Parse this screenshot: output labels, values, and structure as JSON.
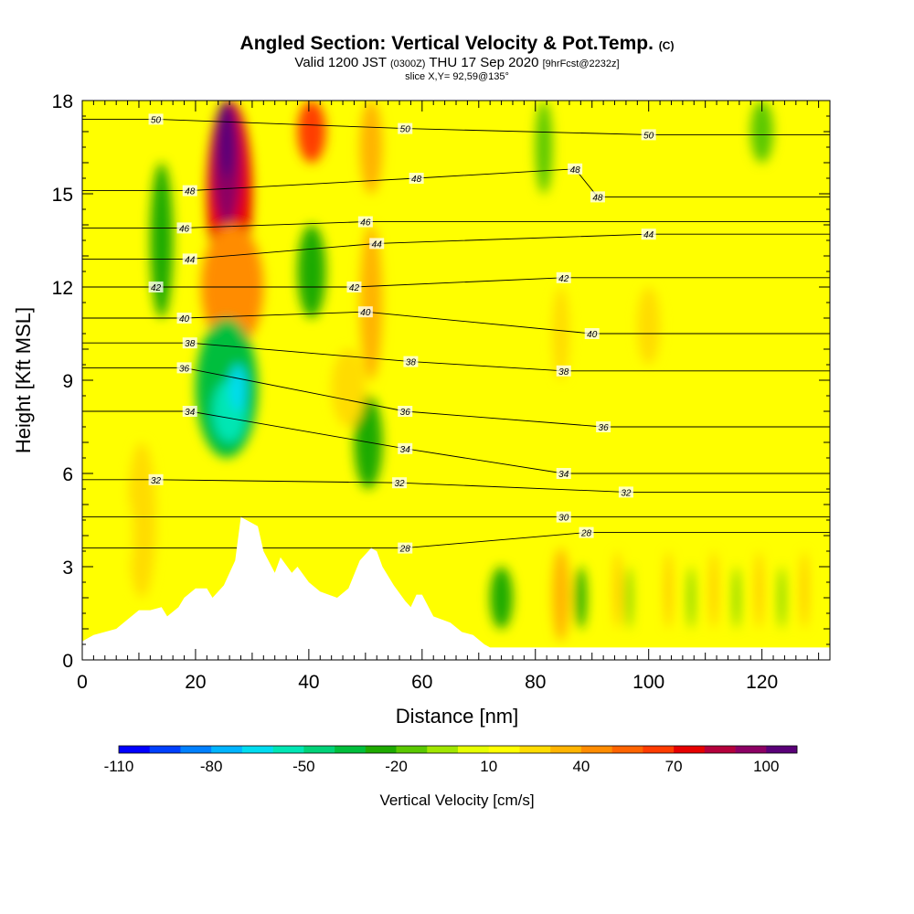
{
  "title": {
    "main": "Angled Section: Vertical Velocity & Pot.Temp.",
    "unit_tag": "(C)",
    "valid_prefix": "Valid 1200 JST",
    "valid_utc": "(0300Z)",
    "valid_date": "THU 17 Sep 2020",
    "forecast": "[9hrFcst@2232z]",
    "slice": "slice X,Y= 92,59@135°"
  },
  "chart_data": {
    "type": "heatmap",
    "xlabel": "Distance [nm]",
    "ylabel": "Height [Kft MSL]",
    "xlim": [
      0,
      132
    ],
    "ylim": [
      0,
      18
    ],
    "x_ticks": [
      0,
      20,
      40,
      60,
      80,
      100,
      120
    ],
    "y_ticks": [
      0,
      3,
      6,
      9,
      12,
      15,
      18
    ],
    "colorbar": {
      "label": "Vertical Velocity [cm/s]",
      "min": -110,
      "max": 110,
      "tick_labels": [
        "-110",
        "-80",
        "-50",
        "-20",
        "10",
        "40",
        "70",
        "100"
      ],
      "colors": [
        "#0000ff",
        "#0040ff",
        "#0080ff",
        "#00b4ff",
        "#00dcf0",
        "#00e6b4",
        "#00d278",
        "#00be3c",
        "#1eaa00",
        "#5ac800",
        "#a0e600",
        "#e6ff00",
        "#ffff00",
        "#ffdc00",
        "#ffb400",
        "#ff8c00",
        "#ff6400",
        "#ff3c00",
        "#e60000",
        "#b4003c",
        "#8c0064",
        "#5a0078"
      ]
    },
    "terrain": [
      [
        0,
        0.6
      ],
      [
        2,
        0.8
      ],
      [
        6,
        1.0
      ],
      [
        8,
        1.3
      ],
      [
        10,
        1.6
      ],
      [
        12,
        1.6
      ],
      [
        14,
        1.7
      ],
      [
        15,
        1.4
      ],
      [
        17,
        1.7
      ],
      [
        18,
        2.0
      ],
      [
        20,
        2.3
      ],
      [
        22,
        2.3
      ],
      [
        23,
        2.0
      ],
      [
        25,
        2.4
      ],
      [
        27,
        3.2
      ],
      [
        28,
        4.6
      ],
      [
        31,
        4.3
      ],
      [
        32,
        3.5
      ],
      [
        34,
        2.8
      ],
      [
        35,
        3.3
      ],
      [
        37,
        2.8
      ],
      [
        38,
        3.0
      ],
      [
        40,
        2.5
      ],
      [
        42,
        2.2
      ],
      [
        45,
        2.0
      ],
      [
        47,
        2.3
      ],
      [
        49,
        3.2
      ],
      [
        51,
        3.6
      ],
      [
        52,
        3.5
      ],
      [
        53,
        3.0
      ],
      [
        55,
        2.4
      ],
      [
        57,
        1.9
      ],
      [
        58,
        1.7
      ],
      [
        59,
        2.1
      ],
      [
        60,
        2.1
      ],
      [
        62,
        1.4
      ],
      [
        65,
        1.2
      ],
      [
        67,
        0.9
      ],
      [
        69,
        0.8
      ],
      [
        71,
        0.5
      ],
      [
        72,
        0.4
      ],
      [
        132,
        0.4
      ]
    ],
    "velocity_cells": [
      {
        "x0": 22,
        "x1": 30,
        "y0": 12,
        "y1": 18,
        "v": 75
      },
      {
        "x0": 23,
        "x1": 28,
        "y0": 14,
        "y1": 18,
        "v": 95
      },
      {
        "x0": 24,
        "x1": 27,
        "y0": 15.5,
        "y1": 18,
        "v": 105
      },
      {
        "x0": 21,
        "x1": 32,
        "y0": 10,
        "y1": 14,
        "v": 45
      },
      {
        "x0": 38,
        "x1": 43,
        "y0": 16,
        "y1": 18,
        "v": 60
      },
      {
        "x0": 49,
        "x1": 53,
        "y0": 15,
        "y1": 18,
        "v": 30
      },
      {
        "x0": 49,
        "x1": 53,
        "y0": 9,
        "y1": 14,
        "v": 30
      },
      {
        "x0": 12,
        "x1": 16,
        "y0": 11,
        "y1": 16,
        "v": -25
      },
      {
        "x0": 20,
        "x1": 31,
        "y0": 6.5,
        "y1": 11,
        "v": -40
      },
      {
        "x0": 23,
        "x1": 29,
        "y0": 7,
        "y1": 9,
        "v": -60
      },
      {
        "x0": 26,
        "x1": 29,
        "y0": 8,
        "y1": 9.5,
        "v": -70
      },
      {
        "x0": 38,
        "x1": 43,
        "y0": 11,
        "y1": 14,
        "v": -30
      },
      {
        "x0": 48,
        "x1": 53,
        "y0": 5.5,
        "y1": 8.5,
        "v": -25
      },
      {
        "x0": 9,
        "x1": 11,
        "y0": 3.5,
        "y1": 6,
        "v": 60
      },
      {
        "x0": 9.5,
        "x1": 10.5,
        "y0": 4.2,
        "y1": 5.5,
        "v": 80
      },
      {
        "x0": 8,
        "x1": 13,
        "y0": 2,
        "y1": 7,
        "v": 25
      },
      {
        "x0": 44,
        "x1": 50,
        "y0": 7.5,
        "y1": 10,
        "v": 25
      },
      {
        "x0": 98,
        "x1": 102,
        "y0": 9.5,
        "y1": 12,
        "v": 20
      },
      {
        "x0": 83,
        "x1": 86,
        "y0": 9,
        "y1": 12,
        "v": 20
      },
      {
        "x0": 5,
        "x1": 9,
        "y0": 2.5,
        "y1": 5.5,
        "v": 15
      },
      {
        "x0": 84,
        "x1": 85,
        "y0": 1,
        "y1": 3.2,
        "v": 75
      },
      {
        "x0": 83,
        "x1": 86,
        "y0": 0.6,
        "y1": 3.6,
        "v": 35
      },
      {
        "x0": 72,
        "x1": 76,
        "y0": 1,
        "y1": 3,
        "v": -25
      },
      {
        "x0": 87,
        "x1": 89,
        "y0": 1,
        "y1": 3,
        "v": -25
      },
      {
        "x0": 94,
        "x1": 95,
        "y0": 1,
        "y1": 3.5,
        "v": 40
      },
      {
        "x0": 96,
        "x1": 97,
        "y0": 1,
        "y1": 3,
        "v": -20
      },
      {
        "x0": 103,
        "x1": 104,
        "y0": 1,
        "y1": 3.5,
        "v": 35
      },
      {
        "x0": 107,
        "x1": 108,
        "y0": 1,
        "y1": 3,
        "v": -20
      },
      {
        "x0": 111,
        "x1": 112,
        "y0": 1,
        "y1": 3.5,
        "v": 30
      },
      {
        "x0": 115,
        "x1": 116,
        "y0": 1,
        "y1": 3,
        "v": -15
      },
      {
        "x0": 119,
        "x1": 120,
        "y0": 1,
        "y1": 3.5,
        "v": 35
      },
      {
        "x0": 123,
        "x1": 124,
        "y0": 1,
        "y1": 3,
        "v": -15
      },
      {
        "x0": 127,
        "x1": 128,
        "y0": 1,
        "y1": 3.5,
        "v": 30
      },
      {
        "x0": 80,
        "x1": 83,
        "y0": 15,
        "y1": 18,
        "v": -20
      },
      {
        "x0": 118,
        "x1": 122,
        "y0": 16,
        "y1": 18,
        "v": -15
      }
    ],
    "isotherm_labels": [
      {
        "text": "50",
        "x": 13,
        "y": 17.4
      },
      {
        "text": "50",
        "x": 57,
        "y": 17.1
      },
      {
        "text": "50",
        "x": 100,
        "y": 16.9
      },
      {
        "text": "48",
        "x": 19,
        "y": 15.1
      },
      {
        "text": "48",
        "x": 59,
        "y": 15.5
      },
      {
        "text": "48",
        "x": 87,
        "y": 15.8
      },
      {
        "text": "48",
        "x": 91,
        "y": 14.9
      },
      {
        "text": "46",
        "x": 18,
        "y": 13.9
      },
      {
        "text": "46",
        "x": 50,
        "y": 14.1
      },
      {
        "text": "44",
        "x": 19,
        "y": 12.9
      },
      {
        "text": "44",
        "x": 52,
        "y": 13.4
      },
      {
        "text": "44",
        "x": 100,
        "y": 13.7
      },
      {
        "text": "42",
        "x": 13,
        "y": 12.0
      },
      {
        "text": "42",
        "x": 48,
        "y": 12.0
      },
      {
        "text": "42",
        "x": 85,
        "y": 12.3
      },
      {
        "text": "40",
        "x": 18,
        "y": 11.0
      },
      {
        "text": "40",
        "x": 50,
        "y": 11.2
      },
      {
        "text": "40",
        "x": 90,
        "y": 10.5
      },
      {
        "text": "38",
        "x": 19,
        "y": 10.2
      },
      {
        "text": "38",
        "x": 58,
        "y": 9.6
      },
      {
        "text": "38",
        "x": 85,
        "y": 9.3
      },
      {
        "text": "36",
        "x": 18,
        "y": 9.4
      },
      {
        "text": "36",
        "x": 57,
        "y": 8.0
      },
      {
        "text": "36",
        "x": 92,
        "y": 7.5
      },
      {
        "text": "34",
        "x": 19,
        "y": 8.0
      },
      {
        "text": "34",
        "x": 57,
        "y": 6.8
      },
      {
        "text": "34",
        "x": 85,
        "y": 6.0
      },
      {
        "text": "32",
        "x": 13,
        "y": 5.8
      },
      {
        "text": "32",
        "x": 56,
        "y": 5.7
      },
      {
        "text": "32",
        "x": 96,
        "y": 5.4
      },
      {
        "text": "30",
        "x": 85,
        "y": 4.6
      },
      {
        "text": "28",
        "x": 57,
        "y": 3.6
      },
      {
        "text": "28",
        "x": 89,
        "y": 4.1
      }
    ]
  }
}
